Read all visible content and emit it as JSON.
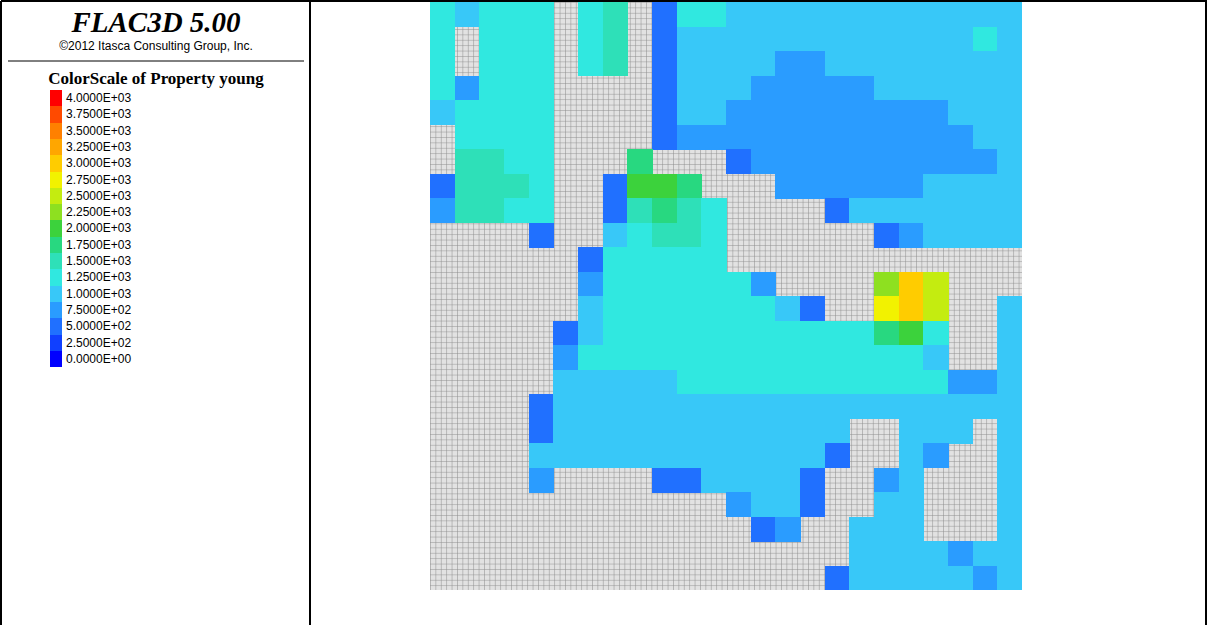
{
  "chart_data": {
    "type": "heatmap",
    "title": "FLAC3D 5.00",
    "subtitle": "©2012 Itasca Consulting Group, Inc.",
    "grid": true,
    "tick_labels": false,
    "colorbar": {
      "title": "ColorScale of Property young",
      "range": [
        0,
        4000
      ],
      "ticks": [
        {
          "value": 4000,
          "label": "4.0000E+03"
        },
        {
          "value": 3750,
          "label": "3.7500E+03"
        },
        {
          "value": 3500,
          "label": "3.5000E+03"
        },
        {
          "value": 3250,
          "label": "3.2500E+03"
        },
        {
          "value": 3000,
          "label": "3.0000E+03"
        },
        {
          "value": 2750,
          "label": "2.7500E+03"
        },
        {
          "value": 2500,
          "label": "2.5000E+03"
        },
        {
          "value": 2250,
          "label": "2.2500E+03"
        },
        {
          "value": 2000,
          "label": "2.0000E+03"
        },
        {
          "value": 1750,
          "label": "1.7500E+03"
        },
        {
          "value": 1500,
          "label": "1.5000E+03"
        },
        {
          "value": 1250,
          "label": "1.2500E+03"
        },
        {
          "value": 1000,
          "label": "1.0000E+03"
        },
        {
          "value": 750,
          "label": "7.5000E+02"
        },
        {
          "value": 500,
          "label": "5.0000E+02"
        },
        {
          "value": 250,
          "label": "2.5000E+02"
        },
        {
          "value": 0,
          "label": "0.0000E+00"
        }
      ],
      "colors": [
        "#ff0000",
        "#ff4a00",
        "#ff8000",
        "#ffa600",
        "#ffcc00",
        "#f2f200",
        "#c4ec10",
        "#8ee020",
        "#3cd23c",
        "#28d880",
        "#2ee0b8",
        "#30e8e0",
        "#38c8f8",
        "#2a9cff",
        "#2070ff",
        "#1040ff",
        "#0000ff"
      ]
    },
    "cells": [
      [
        1300,
        900,
        1200,
        1300,
        1300,
        null,
        1300,
        1600,
        null,
        600,
        1200,
        1200,
        1100,
        1100,
        1000,
        1000,
        1000,
        1000,
        1000,
        1000,
        1100,
        1100,
        1100,
        1100
      ],
      [
        1300,
        null,
        1200,
        1300,
        1300,
        null,
        1300,
        1500,
        null,
        600,
        1100,
        1000,
        900,
        900,
        900,
        900,
        1000,
        1000,
        1000,
        1000,
        1000,
        1100,
        1200,
        1100
      ],
      [
        1200,
        null,
        1200,
        1300,
        1300,
        null,
        1200,
        1400,
        null,
        500,
        1000,
        900,
        900,
        900,
        800,
        800,
        900,
        900,
        900,
        900,
        1000,
        1000,
        1100,
        1100
      ],
      [
        1200,
        800,
        1200,
        1300,
        1300,
        null,
        null,
        null,
        null,
        500,
        1000,
        900,
        900,
        800,
        800,
        800,
        800,
        800,
        900,
        900,
        900,
        900,
        1000,
        1000
      ],
      [
        900,
        1200,
        1300,
        1300,
        1300,
        null,
        null,
        null,
        null,
        500,
        900,
        900,
        800,
        800,
        800,
        800,
        800,
        800,
        800,
        800,
        800,
        900,
        900,
        900
      ],
      [
        null,
        1300,
        1300,
        1300,
        1300,
        null,
        null,
        null,
        null,
        500,
        800,
        800,
        800,
        800,
        800,
        800,
        800,
        800,
        800,
        800,
        800,
        800,
        900,
        900
      ],
      [
        null,
        1500,
        1400,
        1300,
        1200,
        null,
        null,
        null,
        1800,
        null,
        null,
        null,
        600,
        800,
        800,
        700,
        700,
        700,
        800,
        800,
        800,
        800,
        800,
        900
      ],
      [
        600,
        1600,
        1500,
        1400,
        1200,
        null,
        null,
        500,
        1900,
        2000,
        1700,
        null,
        null,
        null,
        700,
        700,
        800,
        800,
        800,
        800,
        900,
        900,
        900,
        900
      ],
      [
        700,
        1500,
        1400,
        1300,
        1200,
        null,
        null,
        600,
        1500,
        1700,
        1600,
        1300,
        null,
        null,
        null,
        null,
        600,
        900,
        900,
        900,
        900,
        900,
        900,
        900
      ],
      [
        null,
        null,
        null,
        null,
        600,
        null,
        null,
        1100,
        1300,
        1400,
        1400,
        1300,
        null,
        null,
        null,
        null,
        null,
        null,
        600,
        700,
        900,
        1000,
        1000,
        1000
      ],
      [
        null,
        null,
        null,
        null,
        null,
        null,
        500,
        1200,
        1300,
        1300,
        1300,
        1200,
        null,
        null,
        null,
        null,
        null,
        null,
        null,
        null,
        null,
        null,
        null,
        null
      ],
      [
        null,
        null,
        null,
        null,
        null,
        null,
        700,
        1200,
        1300,
        1300,
        1300,
        1300,
        1200,
        700,
        null,
        null,
        null,
        null,
        2200,
        3000,
        2600,
        null,
        null,
        null
      ],
      [
        null,
        null,
        null,
        null,
        null,
        null,
        1000,
        1300,
        1200,
        1200,
        1200,
        1200,
        1200,
        1300,
        1000,
        600,
        null,
        null,
        2800,
        3000,
        2500,
        null,
        null,
        1100
      ],
      [
        null,
        null,
        null,
        null,
        null,
        600,
        1100,
        1200,
        1200,
        1200,
        1200,
        1200,
        1200,
        1200,
        1200,
        1200,
        1200,
        1300,
        1800,
        2000,
        1200,
        null,
        null,
        1100
      ],
      [
        null,
        null,
        null,
        null,
        null,
        700,
        1200,
        1200,
        1200,
        1200,
        1200,
        1200,
        1200,
        1200,
        1200,
        1200,
        1200,
        1200,
        1300,
        1300,
        1000,
        null,
        null,
        1000
      ],
      [
        null,
        null,
        null,
        null,
        null,
        1000,
        1100,
        1100,
        1100,
        1100,
        1200,
        1200,
        1200,
        1200,
        1200,
        1200,
        1200,
        1200,
        1200,
        1200,
        1200,
        700,
        800,
        1000
      ],
      [
        null,
        null,
        null,
        null,
        500,
        1100,
        1000,
        1000,
        900,
        1000,
        1100,
        1100,
        1100,
        1100,
        1100,
        1100,
        1100,
        1100,
        1100,
        1000,
        1000,
        1000,
        900,
        1000
      ],
      [
        null,
        null,
        null,
        null,
        600,
        1000,
        900,
        900,
        900,
        1000,
        1000,
        1100,
        1100,
        1100,
        1100,
        1100,
        1000,
        null,
        null,
        1100,
        1100,
        1000,
        null,
        1000
      ],
      [
        null,
        null,
        null,
        null,
        900,
        900,
        900,
        900,
        900,
        1000,
        1000,
        1000,
        1000,
        1000,
        1000,
        1000,
        500,
        null,
        null,
        1000,
        700,
        null,
        null,
        1000
      ],
      [
        null,
        null,
        null,
        null,
        700,
        null,
        null,
        null,
        null,
        500,
        500,
        1000,
        1000,
        1000,
        900,
        600,
        null,
        null,
        800,
        1100,
        null,
        null,
        null,
        1000
      ],
      [
        null,
        null,
        null,
        null,
        null,
        null,
        null,
        null,
        null,
        null,
        null,
        null,
        700,
        1000,
        900,
        500,
        null,
        null,
        1000,
        1100,
        null,
        null,
        null,
        1000
      ],
      [
        null,
        null,
        null,
        null,
        null,
        null,
        null,
        null,
        null,
        null,
        null,
        null,
        null,
        500,
        800,
        null,
        null,
        900,
        1000,
        1100,
        null,
        null,
        null,
        1000
      ],
      [
        null,
        null,
        null,
        null,
        null,
        null,
        null,
        null,
        null,
        null,
        null,
        null,
        null,
        null,
        null,
        null,
        null,
        900,
        1000,
        900,
        900,
        800,
        900,
        1000
      ],
      [
        null,
        null,
        null,
        null,
        null,
        null,
        null,
        null,
        null,
        null,
        null,
        null,
        null,
        null,
        null,
        null,
        600,
        900,
        1000,
        900,
        900,
        900,
        800,
        900
      ]
    ]
  }
}
